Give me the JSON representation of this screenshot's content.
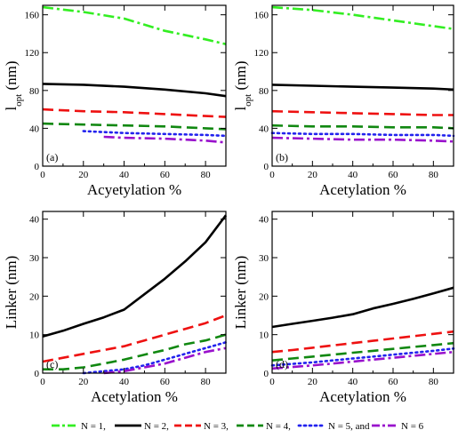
{
  "legend": [
    {
      "label": "N = 1,",
      "color": "#33ee22",
      "dash": "dashdot"
    },
    {
      "label": "N = 2,",
      "color": "#000000",
      "dash": "solid"
    },
    {
      "label": "N = 3,",
      "color": "#ee1111",
      "dash": "dash"
    },
    {
      "label": "N = 4,",
      "color": "#118811",
      "dash": "dash"
    },
    {
      "label": "N = 5, and",
      "color": "#2222ee",
      "dash": "dot"
    },
    {
      "label": "N = 6",
      "color": "#9911cc",
      "dash": "dashdot"
    }
  ],
  "chart_data": [
    {
      "type": "line",
      "panel_label": "(a)",
      "xlabel": "Acyetylation %",
      "ylabel_main": "l",
      "ylabel_sub": "opt",
      "ylabel_unit": " (nm)",
      "xlim": [
        0,
        90
      ],
      "ylim": [
        0,
        170
      ],
      "xticks": [
        0,
        20,
        40,
        60,
        80
      ],
      "yticks": [
        0,
        40,
        80,
        120,
        160
      ],
      "series": [
        {
          "x": [
            0,
            20,
            40,
            60,
            80,
            90
          ],
          "y": [
            168,
            163,
            156,
            143,
            134,
            129
          ]
        },
        {
          "x": [
            0,
            20,
            40,
            60,
            80,
            90
          ],
          "y": [
            87,
            86,
            84,
            81,
            77,
            74
          ]
        },
        {
          "x": [
            0,
            20,
            40,
            60,
            80,
            90
          ],
          "y": [
            60,
            58,
            57,
            55,
            53,
            52
          ]
        },
        {
          "x": [
            0,
            20,
            40,
            60,
            80,
            90
          ],
          "y": [
            45,
            44,
            43,
            42,
            40,
            39
          ]
        },
        {
          "x": [
            20,
            40,
            60,
            80,
            90
          ],
          "y": [
            37,
            35,
            34,
            33,
            32
          ]
        },
        {
          "x": [
            30,
            40,
            60,
            80,
            90
          ],
          "y": [
            31,
            30,
            29,
            27,
            25
          ]
        }
      ]
    },
    {
      "type": "line",
      "panel_label": "(b)",
      "xlabel": "Acetylation %",
      "ylabel_main": "l",
      "ylabel_sub": "opt",
      "ylabel_unit": " (nm)",
      "xlim": [
        0,
        90
      ],
      "ylim": [
        0,
        170
      ],
      "xticks": [
        0,
        20,
        40,
        60,
        80
      ],
      "yticks": [
        0,
        40,
        80,
        120,
        160
      ],
      "series": [
        {
          "x": [
            0,
            20,
            40,
            60,
            80,
            90
          ],
          "y": [
            168,
            165,
            160,
            154,
            148,
            145
          ]
        },
        {
          "x": [
            0,
            20,
            40,
            60,
            80,
            90
          ],
          "y": [
            86,
            85,
            84,
            83,
            82,
            81
          ]
        },
        {
          "x": [
            0,
            20,
            40,
            60,
            80,
            90
          ],
          "y": [
            58,
            57,
            56,
            55,
            54,
            54
          ]
        },
        {
          "x": [
            0,
            20,
            40,
            60,
            80,
            90
          ],
          "y": [
            43,
            42,
            42,
            41,
            41,
            40
          ]
        },
        {
          "x": [
            0,
            20,
            40,
            60,
            80,
            90
          ],
          "y": [
            35,
            34,
            34,
            33,
            33,
            32
          ]
        },
        {
          "x": [
            0,
            20,
            40,
            60,
            80,
            90
          ],
          "y": [
            30,
            29,
            28,
            28,
            27,
            26
          ]
        }
      ]
    },
    {
      "type": "line",
      "panel_label": "(c)",
      "xlabel": "Acetylation %",
      "ylabel_main": "Linker (nm)",
      "ylabel_sub": "",
      "ylabel_unit": "",
      "xlim": [
        0,
        90
      ],
      "ylim": [
        0,
        42
      ],
      "xticks": [
        0,
        20,
        40,
        60,
        80
      ],
      "yticks": [
        0,
        10,
        20,
        30,
        40
      ],
      "series": [
        {
          "x": [],
          "y": []
        },
        {
          "x": [
            0,
            10,
            20,
            30,
            40,
            50,
            60,
            70,
            80,
            90
          ],
          "y": [
            9.5,
            11,
            12.8,
            14.5,
            16.5,
            20.5,
            24.5,
            29,
            34,
            41
          ]
        },
        {
          "x": [
            0,
            10,
            20,
            30,
            40,
            50,
            60,
            70,
            80,
            90
          ],
          "y": [
            3,
            4,
            5,
            6,
            7,
            8.5,
            10,
            11.5,
            13,
            15
          ]
        },
        {
          "x": [
            0,
            10,
            20,
            30,
            40,
            50,
            60,
            70,
            80,
            90
          ],
          "y": [
            1,
            1,
            1.5,
            2.5,
            3.5,
            4.8,
            6,
            7.5,
            8.5,
            10
          ]
        },
        {
          "x": [
            20,
            30,
            40,
            50,
            60,
            70,
            80,
            90
          ],
          "y": [
            0,
            0.5,
            1,
            2,
            3.5,
            5,
            6.5,
            8
          ]
        },
        {
          "x": [
            30,
            40,
            50,
            60,
            70,
            80,
            90
          ],
          "y": [
            0,
            0.5,
            1.5,
            2.5,
            4,
            5.5,
            6.5
          ]
        }
      ]
    },
    {
      "type": "line",
      "panel_label": "(d)",
      "xlabel": "Acetylation %",
      "ylabel_main": "Linker (nm)",
      "ylabel_sub": "",
      "ylabel_unit": "",
      "xlim": [
        0,
        90
      ],
      "ylim": [
        0,
        42
      ],
      "xticks": [
        0,
        20,
        40,
        60,
        80
      ],
      "yticks": [
        0,
        10,
        20,
        30,
        40
      ],
      "series": [
        {
          "x": [],
          "y": []
        },
        {
          "x": [
            0,
            10,
            20,
            30,
            40,
            50,
            60,
            70,
            80,
            90
          ],
          "y": [
            12,
            12.8,
            13.6,
            14.4,
            15.3,
            16.8,
            18,
            19.3,
            20.7,
            22.2
          ]
        },
        {
          "x": [
            0,
            10,
            20,
            30,
            40,
            50,
            60,
            70,
            80,
            90
          ],
          "y": [
            5.5,
            6,
            6.6,
            7.2,
            7.8,
            8.4,
            9,
            9.6,
            10.2,
            10.8
          ]
        },
        {
          "x": [
            0,
            10,
            20,
            30,
            40,
            50,
            60,
            70,
            80,
            90
          ],
          "y": [
            3.3,
            3.8,
            4.3,
            4.8,
            5.3,
            5.8,
            6.3,
            6.8,
            7.3,
            7.8
          ]
        },
        {
          "x": [
            0,
            10,
            20,
            30,
            40,
            50,
            60,
            70,
            80,
            90
          ],
          "y": [
            2,
            2.4,
            2.8,
            3.3,
            3.8,
            4.3,
            4.8,
            5.3,
            5.8,
            6.4
          ]
        },
        {
          "x": [
            0,
            10,
            20,
            30,
            40,
            50,
            60,
            70,
            80,
            90
          ],
          "y": [
            1.2,
            1.6,
            2,
            2.5,
            3,
            3.5,
            4,
            4.5,
            5,
            5.5
          ]
        }
      ]
    }
  ]
}
